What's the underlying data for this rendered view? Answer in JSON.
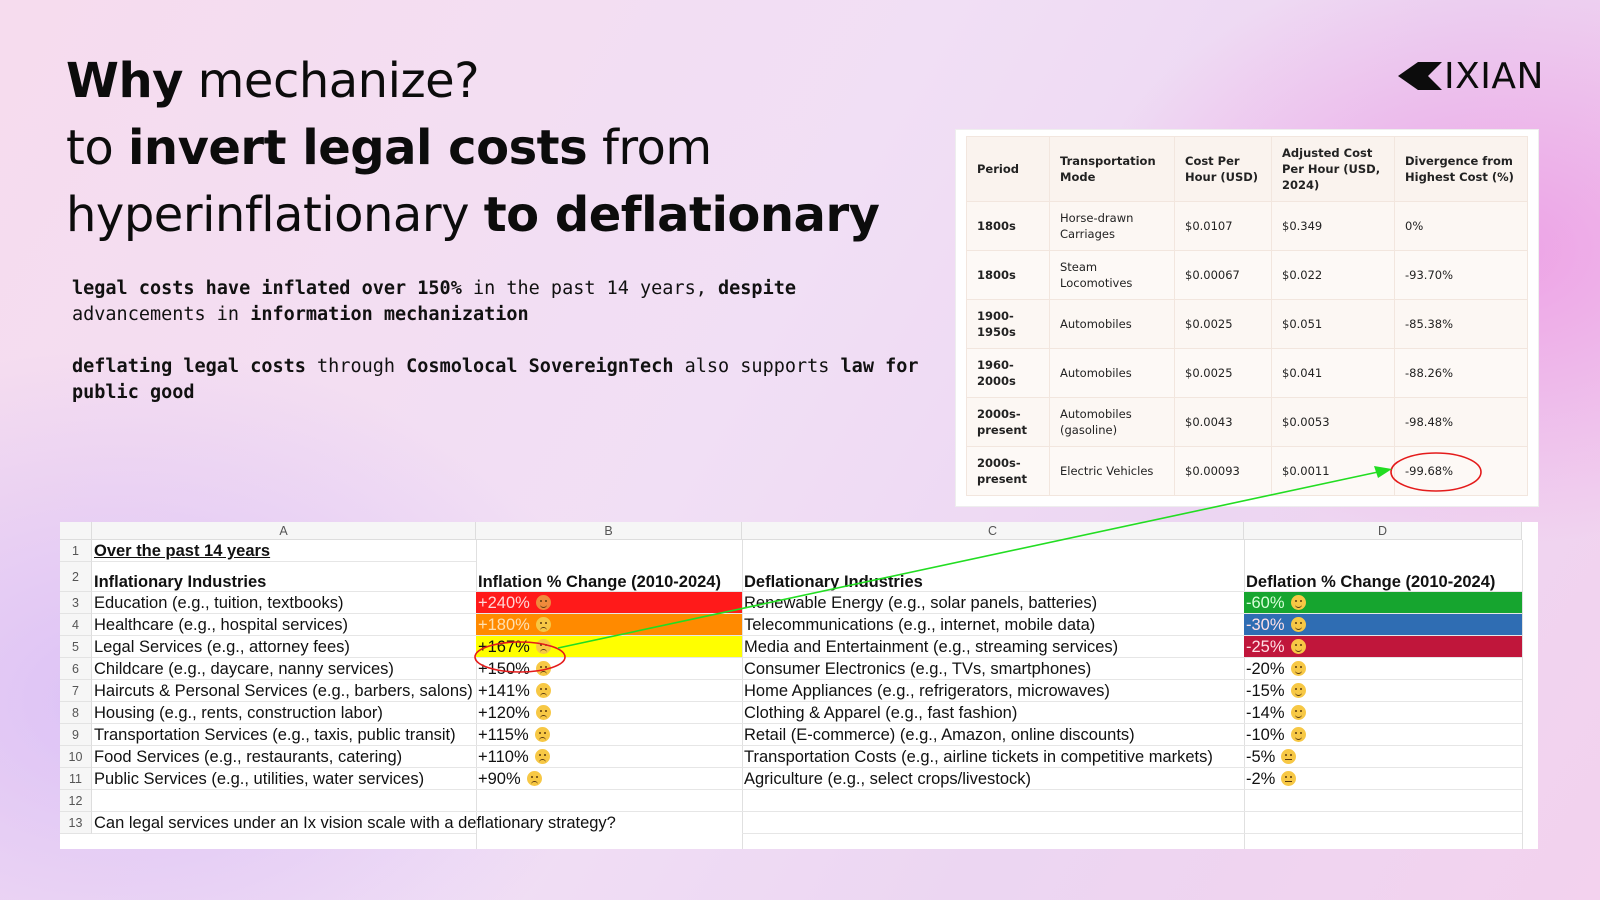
{
  "headline": {
    "l1_bold": "Why",
    "l1_rest": " mechanize?",
    "l2_pre": "to ",
    "l2_bold": "invert legal costs",
    "l2_post": " from",
    "l3_pre": "hyperinflationary ",
    "l3_bold": "to deflationary"
  },
  "paragraph1": {
    "b1": "legal costs have inflated over 150%",
    "t1": " in the past 14 years, ",
    "b2": "despite",
    "t2": " advancements in ",
    "b3": "information mechanization"
  },
  "paragraph2": {
    "b1": "deflating legal costs",
    "t1": " through ",
    "b2": "Cosmolocal SovereignTech",
    "t2": " also supports ",
    "b3": "law for public good"
  },
  "logo": {
    "text": "IXIAN",
    "color": "#0c0c0c"
  },
  "cost_table": {
    "headers": [
      "Period",
      "Transportation Mode",
      "Cost Per Hour (USD)",
      "Adjusted Cost Per Hour (USD, 2024)",
      "Divergence from Highest Cost (%)"
    ],
    "rows": [
      [
        "1800s",
        "Horse-drawn Carriages",
        "$0.0107",
        "$0.349",
        "0%"
      ],
      [
        "1800s",
        "Steam Locomotives",
        "$0.00067",
        "$0.022",
        "-93.70%"
      ],
      [
        "1900-1950s",
        "Automobiles",
        "$0.0025",
        "$0.051",
        "-85.38%"
      ],
      [
        "1960-2000s",
        "Automobiles",
        "$0.0025",
        "$0.041",
        "-88.26%"
      ],
      [
        "2000s-present",
        "Automobiles (gasoline)",
        "$0.0043",
        "$0.0053",
        "-98.48%"
      ],
      [
        "2000s-present",
        "Electric Vehicles",
        "$0.00093",
        "$0.0011",
        "-99.68%"
      ]
    ]
  },
  "sheet": {
    "columns": [
      "A",
      "B",
      "C",
      "D"
    ],
    "row_numbers": [
      "1",
      "2",
      "3",
      "4",
      "5",
      "6",
      "7",
      "8",
      "9",
      "10",
      "11",
      "12",
      "13"
    ],
    "title": "Over the past 14 years",
    "headers": {
      "a": "Inflationary Industries",
      "b": "Inflation % Change (2010-2024)",
      "c": "Deflationary Industries",
      "d": "Deflation % Change (2010-2024)"
    },
    "rows": [
      {
        "a": "Education (e.g., tuition, textbooks)",
        "b": "+240%",
        "c": "Renewable Energy (e.g., solar panels, batteries)",
        "d": "-60%",
        "b_color": "#ff1a1a",
        "d_color": "#16a52f",
        "b_face": "angry",
        "d_face": "happy"
      },
      {
        "a": "Healthcare (e.g., hospital services)",
        "b": "+180%",
        "c": "Telecommunications (e.g., internet, mobile data)",
        "d": "-30%",
        "b_color": "#ff8a00",
        "d_color": "#2f6db3",
        "b_face": "sad",
        "d_face": "happy"
      },
      {
        "a": "Legal Services (e.g., attorney fees)",
        "b": "+167%",
        "c": "Media and Entertainment (e.g., streaming services)",
        "d": "-25%",
        "b_color": "#ffff00",
        "d_color": "#c0163b",
        "b_face": "sad",
        "d_face": "happy"
      },
      {
        "a": "Childcare (e.g., daycare, nanny services)",
        "b": "+150%",
        "c": "Consumer Electronics (e.g., TVs, smartphones)",
        "d": "-20%",
        "b_color": "",
        "d_color": "",
        "b_face": "sad",
        "d_face": "happy"
      },
      {
        "a": "Haircuts & Personal Services (e.g., barbers, salons)",
        "b": "+141%",
        "c": "Home Appliances (e.g., refrigerators, microwaves)",
        "d": "-15%",
        "b_color": "",
        "d_color": "",
        "b_face": "sad",
        "d_face": "happy"
      },
      {
        "a": "Housing (e.g., rents, construction labor)",
        "b": "+120%",
        "c": "Clothing & Apparel (e.g., fast fashion)",
        "d": "-14%",
        "b_color": "",
        "d_color": "",
        "b_face": "sad",
        "d_face": "happy"
      },
      {
        "a": "Transportation Services (e.g., taxis, public transit)",
        "b": "+115%",
        "c": "Retail (E-commerce) (e.g., Amazon, online discounts)",
        "d": "-10%",
        "b_color": "",
        "d_color": "",
        "b_face": "sad",
        "d_face": "happy"
      },
      {
        "a": "Food Services (e.g., restaurants, catering)",
        "b": "+110%",
        "c": "Transportation Costs (e.g., airline tickets in competitive markets)",
        "d": "-5%",
        "b_color": "",
        "d_color": "",
        "b_face": "sad",
        "d_face": "neutral"
      },
      {
        "a": "Public Services (e.g., utilities, water services)",
        "b": "+90%",
        "c": "Agriculture (e.g., select crops/livestock)",
        "d": "-2%",
        "b_color": "",
        "d_color": "",
        "b_face": "sad",
        "d_face": "neutral"
      }
    ],
    "question": "Can legal services under an Ix vision scale with a deflationary strategy?"
  },
  "annotation_colors": {
    "circle": "#e41b1b",
    "arrow": "#22dd22"
  }
}
